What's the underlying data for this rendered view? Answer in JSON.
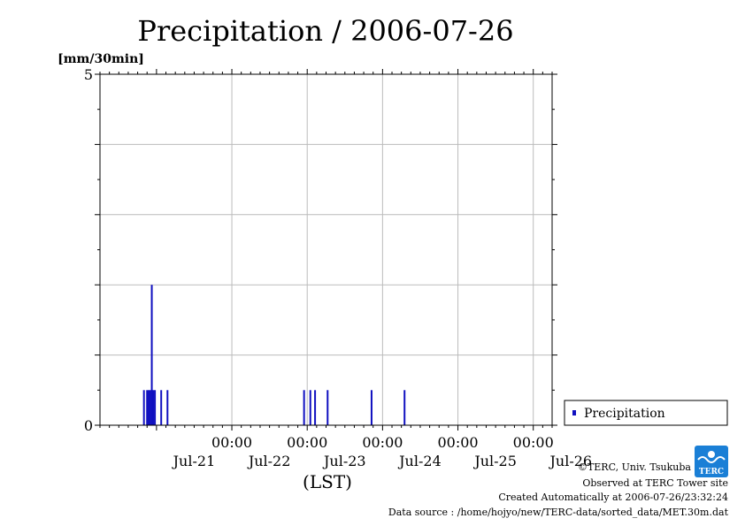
{
  "chart_data": {
    "type": "bar",
    "title": "Precipitation / 2006-07-26",
    "ylabel": "[mm/30min]",
    "xlabel": "(LST)",
    "ylim": [
      0,
      5
    ],
    "y_tick_labels": [
      "0",
      "5"
    ],
    "x_tick_top": [
      "00:00",
      "00:00",
      "00:00",
      "00:00",
      "00:00"
    ],
    "x_tick_bottom": [
      "Jul-21",
      "Jul-22",
      "Jul-23",
      "Jul-24",
      "Jul-25",
      "Jul-26"
    ],
    "xlim_hours": [
      -18,
      126
    ],
    "bar_color": "#1010c0",
    "grid": true,
    "legend": {
      "position": "right",
      "label": "Precipitation"
    },
    "series": [
      {
        "name": "Precipitation",
        "unit": "mm/30min",
        "points": [
          {
            "t": "2006-07-20 20:00",
            "v": 0.5
          },
          {
            "t": "2006-07-20 21:00",
            "v": 0.5
          },
          {
            "t": "2006-07-20 21:30",
            "v": 0.5
          },
          {
            "t": "2006-07-20 22:00",
            "v": 0.5
          },
          {
            "t": "2006-07-20 22:30",
            "v": 2.0
          },
          {
            "t": "2006-07-20 23:00",
            "v": 0.5
          },
          {
            "t": "2006-07-20 23:30",
            "v": 0.5
          },
          {
            "t": "2006-07-21 01:30",
            "v": 0.5
          },
          {
            "t": "2006-07-21 03:30",
            "v": 0.5
          },
          {
            "t": "2006-07-22 23:00",
            "v": 0.5
          },
          {
            "t": "2006-07-23 01:00",
            "v": 0.5
          },
          {
            "t": "2006-07-23 02:30",
            "v": 0.5
          },
          {
            "t": "2006-07-23 06:30",
            "v": 0.5
          },
          {
            "t": "2006-07-23 20:30",
            "v": 0.5
          },
          {
            "t": "2006-07-24 07:00",
            "v": 0.5
          }
        ]
      }
    ]
  },
  "credits": {
    "copyright": "©TERC, Univ. Tsukuba",
    "site": "Observed at TERC Tower site",
    "created": "Created Automatically at 2006-07-26/23:32:24",
    "source": "Data source : /home/hojyo/new/TERC-data/sorted_data/MET.30m.dat"
  },
  "logo": {
    "text": "TERC",
    "color": "#1a7fd6",
    "icon": "terc-logo-icon"
  }
}
